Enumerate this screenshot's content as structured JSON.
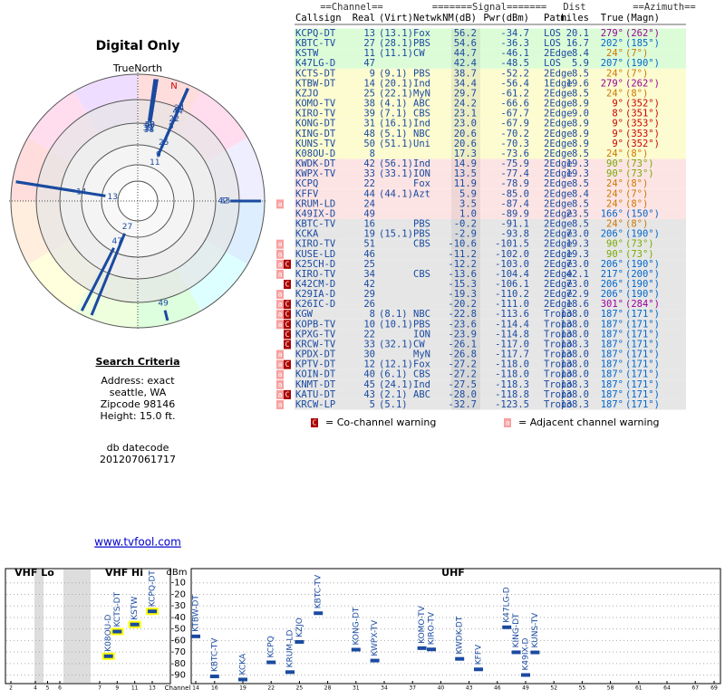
{
  "left": {
    "title": "Digital Only",
    "north": "TrueNorth",
    "n": "N",
    "criteria_title": "Search Criteria",
    "criteria": [
      "Address: exact",
      "seattle, WA",
      "Zipcode 98146",
      "Height: 15.0 ft."
    ],
    "datecode": [
      "db datecode",
      "201207061717"
    ],
    "link": "www.tvfool.com"
  },
  "table": {
    "groups": [
      "==Channel==",
      "=======Signal=======",
      "Dist",
      "==Azimuth=="
    ],
    "headers": [
      "Callsign",
      "Real",
      "(Virt)",
      "Netwk",
      "NM(dB)",
      "Pwr(dBm)",
      "Path",
      "miles",
      "True",
      "(Magn)"
    ],
    "rows": [
      {
        "call": "KCPQ-DT",
        "real": 13,
        "virt": "(13.1)",
        "net": "Fox",
        "nm": "56.2",
        "pwr": "-34.7",
        "path": "LOS",
        "dist": "20.1",
        "true": "279°",
        "magn": "(262°)"
      },
      {
        "call": "KBTC-TV",
        "real": 27,
        "virt": "(28.1)",
        "net": "PBS",
        "nm": "54.6",
        "pwr": "-36.3",
        "path": "LOS",
        "dist": "16.7",
        "true": "202°",
        "magn": "(185°)"
      },
      {
        "call": "KSTW",
        "real": 11,
        "virt": "(11.1)",
        "net": "CW",
        "nm": "44.7",
        "pwr": "-46.1",
        "path": "2Edge",
        "dist": "8.4",
        "true": "24°",
        "magn": "(7°)"
      },
      {
        "call": "K47LG-D",
        "real": 47,
        "nm": "42.4",
        "pwr": "-48.5",
        "path": "LOS",
        "dist": "5.9",
        "true": "207°",
        "magn": "(190°)"
      },
      {
        "call": "KCTS-DT",
        "real": 9,
        "virt": "(9.1)",
        "net": "PBS",
        "nm": "38.7",
        "pwr": "-52.2",
        "path": "2Edge",
        "dist": "8.5",
        "true": "24°",
        "magn": "(7°)"
      },
      {
        "call": "KTBW-DT",
        "real": 14,
        "virt": "(20.1)",
        "net": "Ind",
        "nm": "34.4",
        "pwr": "-56.4",
        "path": "1Edge",
        "dist": "19.6",
        "true": "279°",
        "magn": "(262°)"
      },
      {
        "call": "KZJO",
        "real": 25,
        "virt": "(22.1)",
        "net": "MyN",
        "nm": "29.7",
        "pwr": "-61.2",
        "path": "2Edge",
        "dist": "8.5",
        "true": "24°",
        "magn": "(8°)"
      },
      {
        "call": "KOMO-TV",
        "real": 38,
        "virt": "(4.1)",
        "net": "ABC",
        "nm": "24.2",
        "pwr": "-66.6",
        "path": "2Edge",
        "dist": "8.9",
        "true": "9°",
        "magn": "(352°)"
      },
      {
        "call": "KIRO-TV",
        "real": 39,
        "virt": "(7.1)",
        "net": "CBS",
        "nm": "23.1",
        "pwr": "-67.7",
        "path": "2Edge",
        "dist": "9.0",
        "true": "8°",
        "magn": "(351°)"
      },
      {
        "call": "KONG-DT",
        "real": 31,
        "virt": "(16.1)",
        "net": "Ind",
        "nm": "23.0",
        "pwr": "-67.9",
        "path": "2Edge",
        "dist": "8.9",
        "true": "9°",
        "magn": "(353°)"
      },
      {
        "call": "KING-DT",
        "real": 48,
        "virt": "(5.1)",
        "net": "NBC",
        "nm": "20.6",
        "pwr": "-70.2",
        "path": "2Edge",
        "dist": "8.9",
        "true": "9°",
        "magn": "(353°)"
      },
      {
        "call": "KUNS-TV",
        "real": 50,
        "virt": "(51.1)",
        "net": "Uni",
        "nm": "20.6",
        "pwr": "-70.3",
        "path": "2Edge",
        "dist": "8.9",
        "true": "9°",
        "magn": "(352°)"
      },
      {
        "call": "K08OU-D",
        "real": 8,
        "nm": "17.3",
        "pwr": "-73.6",
        "path": "2Edge",
        "dist": "8.5",
        "true": "24°",
        "magn": "(8°)"
      },
      {
        "call": "KWDK-DT",
        "real": 42,
        "virt": "(56.1)",
        "net": "Ind",
        "nm": "14.9",
        "pwr": "-75.9",
        "path": "2Edge",
        "dist": "19.3",
        "true": "90°",
        "magn": "(73°)"
      },
      {
        "call": "KWPX-TV",
        "real": 33,
        "virt": "(33.1)",
        "net": "ION",
        "nm": "13.5",
        "pwr": "-77.4",
        "path": "2Edge",
        "dist": "19.3",
        "true": "90°",
        "magn": "(73°)"
      },
      {
        "call": "KCPQ",
        "real": 22,
        "net": "Fox",
        "nm": "11.9",
        "pwr": "-78.9",
        "path": "2Edge",
        "dist": "8.5",
        "true": "24°",
        "magn": "(8°)"
      },
      {
        "call": "KFFV",
        "real": 44,
        "virt": "(44.1)",
        "net": "Azt",
        "nm": "5.9",
        "pwr": "-85.0",
        "path": "2Edge",
        "dist": "8.4",
        "true": "24°",
        "magn": "(7°)"
      },
      {
        "call": "KRUM-LD",
        "real": 24,
        "nm": "3.5",
        "pwr": "-87.4",
        "path": "2Edge",
        "dist": "8.5",
        "true": "24°",
        "magn": "(8°)",
        "warn": [
          "a"
        ]
      },
      {
        "call": "K49IX-D",
        "real": 49,
        "nm": "1.0",
        "pwr": "-89.9",
        "path": "2Edge",
        "dist": "23.5",
        "true": "166°",
        "magn": "(150°)"
      },
      {
        "call": "KBTC-TV",
        "real": 16,
        "net": "PBS",
        "nm": "-0.2",
        "pwr": "-91.1",
        "path": "2Edge",
        "dist": "8.5",
        "true": "24°",
        "magn": "(8°)"
      },
      {
        "call": "KCKA",
        "real": 19,
        "virt": "(15.1)",
        "net": "PBS",
        "nm": "-2.9",
        "pwr": "-93.8",
        "path": "2Edge",
        "dist": "73.0",
        "true": "206°",
        "magn": "(190°)"
      },
      {
        "call": "KIRO-TV",
        "real": 51,
        "net": "CBS",
        "nm": "-10.6",
        "pwr": "-101.5",
        "path": "2Edge",
        "dist": "19.3",
        "true": "90°",
        "magn": "(73°)",
        "warn": [
          "a"
        ]
      },
      {
        "call": "KUSE-LD",
        "real": 46,
        "nm": "-11.2",
        "pwr": "-102.0",
        "path": "2Edge",
        "dist": "19.3",
        "true": "90°",
        "magn": "(73°)",
        "warn": [
          "a"
        ]
      },
      {
        "call": "K25CH-D",
        "real": 25,
        "nm": "-12.2",
        "pwr": "-103.0",
        "path": "2Edge",
        "dist": "73.0",
        "true": "206°",
        "magn": "(190°)",
        "warn": [
          "a",
          "C"
        ]
      },
      {
        "call": "KIRO-TV",
        "real": 34,
        "net": "CBS",
        "nm": "-13.6",
        "pwr": "-104.4",
        "path": "2Edge",
        "dist": "42.1",
        "true": "217°",
        "magn": "(200°)",
        "warn": [
          "a"
        ]
      },
      {
        "call": "K42CM-D",
        "real": 42,
        "nm": "-15.3",
        "pwr": "-106.1",
        "path": "2Edge",
        "dist": "73.0",
        "true": "206°",
        "magn": "(190°)",
        "warn": [
          "C"
        ]
      },
      {
        "call": "K29IA-D",
        "real": 29,
        "nm": "-19.3",
        "pwr": "-110.2",
        "path": "2Edge",
        "dist": "72.9",
        "true": "206°",
        "magn": "(190°)",
        "warn": [
          "a"
        ]
      },
      {
        "call": "K26IC-D",
        "real": 26,
        "nm": "-20.2",
        "pwr": "-111.0",
        "path": "2Edge",
        "dist": "18.6",
        "true": "301°",
        "magn": "(284°)",
        "warn": [
          "a",
          "C"
        ]
      },
      {
        "call": "KGW",
        "real": 8,
        "virt": "(8.1)",
        "net": "NBC",
        "nm": "-22.8",
        "pwr": "-113.6",
        "path": "Tropo",
        "dist": "138.0",
        "true": "187°",
        "magn": "(171°)",
        "warn": [
          "a",
          "C"
        ]
      },
      {
        "call": "KOPB-TV",
        "real": 10,
        "virt": "(10.1)",
        "net": "PBS",
        "nm": "-23.6",
        "pwr": "-114.4",
        "path": "Tropo",
        "dist": "138.0",
        "true": "187°",
        "magn": "(171°)",
        "warn": [
          "a",
          "C"
        ]
      },
      {
        "call": "KPXG-TV",
        "real": 22,
        "net": "ION",
        "nm": "-23.9",
        "pwr": "-114.8",
        "path": "Tropo",
        "dist": "138.0",
        "true": "187°",
        "magn": "(171°)",
        "warn": [
          "C"
        ]
      },
      {
        "call": "KRCW-TV",
        "real": 33,
        "virt": "(32.1)",
        "net": "CW",
        "nm": "-26.1",
        "pwr": "-117.0",
        "path": "Tropo",
        "dist": "138.3",
        "true": "187°",
        "magn": "(171°)",
        "warn": [
          "C"
        ]
      },
      {
        "call": "KPDX-DT",
        "real": 30,
        "net": "MyN",
        "nm": "-26.8",
        "pwr": "-117.7",
        "path": "Tropo",
        "dist": "138.0",
        "true": "187°",
        "magn": "(171°)",
        "warn": [
          "a"
        ]
      },
      {
        "call": "KPTV-DT",
        "real": 12,
        "virt": "(12.1)",
        "net": "Fox",
        "nm": "-27.2",
        "pwr": "-118.0",
        "path": "Tropo",
        "dist": "138.0",
        "true": "187°",
        "magn": "(171°)",
        "warn": [
          "a",
          "C"
        ]
      },
      {
        "call": "KOIN-DT",
        "real": 40,
        "virt": "(6.1)",
        "net": "CBS",
        "nm": "-27.2",
        "pwr": "-118.0",
        "path": "Tropo",
        "dist": "138.0",
        "true": "187°",
        "magn": "(171°)",
        "warn": [
          "a"
        ]
      },
      {
        "call": "KNMT-DT",
        "real": 45,
        "virt": "(24.1)",
        "net": "Ind",
        "nm": "-27.5",
        "pwr": "-118.3",
        "path": "Tropo",
        "dist": "138.3",
        "true": "187°",
        "magn": "(171°)",
        "warn": [
          "a"
        ]
      },
      {
        "call": "KATU-DT",
        "real": 43,
        "virt": "(2.1)",
        "net": "ABC",
        "nm": "-28.0",
        "pwr": "-118.8",
        "path": "Tropo",
        "dist": "138.0",
        "true": "187°",
        "magn": "(171°)",
        "warn": [
          "a",
          "C"
        ]
      },
      {
        "call": "KRCW-LP",
        "real": 5,
        "virt": "(5.1)",
        "nm": "-32.7",
        "pwr": "-123.5",
        "path": "Tropo",
        "dist": "138.3",
        "true": "187°",
        "magn": "(171°)",
        "warn": [
          "a"
        ]
      }
    ],
    "legend": [
      {
        "mark": "C",
        "text": "= Co-channel warning"
      },
      {
        "mark": "a",
        "text": "= Adjacent channel warning"
      }
    ]
  },
  "spectrum": {
    "ylabel": "dBm",
    "xlabel": "Channel",
    "ylim": [
      -95,
      0
    ],
    "yticks": [
      -10,
      -20,
      -30,
      -40,
      -50,
      -60,
      -70,
      -80,
      -90
    ],
    "bands": [
      {
        "name": "VHF Lo",
        "xlim": [
          2,
          6
        ],
        "xticks": [
          2,
          4,
          5,
          6
        ]
      },
      {
        "name": "VHF Hi",
        "xlim": [
          7,
          13
        ],
        "xticks": [
          7,
          9,
          11,
          13
        ]
      },
      {
        "name": "UHF",
        "xlim": [
          14,
          69
        ],
        "xticks": [
          14,
          16,
          19,
          22,
          25,
          28,
          31,
          34,
          37,
          40,
          43,
          46,
          49,
          52,
          55,
          58,
          61,
          64,
          67,
          69
        ]
      }
    ]
  }
}
